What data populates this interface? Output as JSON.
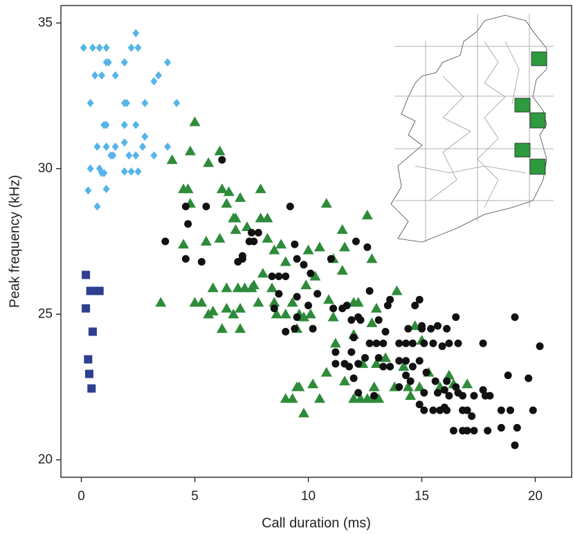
{
  "chart_data": {
    "type": "scatter",
    "x_label": "Call duration (ms)",
    "y_label": "Peak frequency (kHz)",
    "xlim": [
      -0.9,
      21.6
    ],
    "ylim": [
      19.4,
      35.6
    ],
    "xticks": [
      0,
      5,
      10,
      15,
      20
    ],
    "yticks": [
      20,
      25,
      30,
      35
    ],
    "series": [
      {
        "marker": "diamond",
        "color": "#56b4e9",
        "x": [
          0.1,
          0.5,
          0.8,
          1.1,
          2.2,
          2.5,
          2.4,
          1.1,
          1.9,
          1.2,
          3.8,
          0.6,
          0.9,
          1.5,
          3.4,
          3.2,
          0.4,
          1.9,
          2.0,
          2.8,
          4.2,
          1.0,
          1.1,
          1.9,
          2.4,
          2.8,
          1.9,
          2.7,
          0.7,
          1.1,
          1.5,
          3.8,
          1.4,
          1.3,
          2.1,
          2.4,
          3.2,
          0.4,
          0.8,
          0.9,
          1.0,
          1.9,
          2.2,
          2.5,
          0.3,
          1.1,
          0.7
        ],
        "values": [
          34.15,
          34.15,
          34.15,
          34.15,
          34.15,
          34.15,
          34.65,
          33.65,
          33.65,
          33.65,
          33.65,
          33.2,
          33.2,
          33.2,
          33.2,
          33.0,
          32.25,
          32.25,
          32.25,
          32.25,
          32.25,
          31.5,
          31.5,
          31.5,
          31.5,
          31.1,
          30.9,
          30.75,
          30.75,
          30.75,
          30.75,
          30.75,
          30.45,
          30.45,
          30.45,
          30.45,
          30.45,
          30.0,
          30.0,
          29.85,
          29.85,
          29.9,
          29.9,
          29.9,
          29.25,
          29.3,
          28.7
        ]
      },
      {
        "marker": "square",
        "color": "#2e3f8f",
        "x": [
          0.2,
          0.4,
          0.6,
          0.8,
          0.2,
          0.5,
          0.3,
          0.35,
          0.45
        ],
        "values": [
          26.35,
          25.8,
          25.8,
          25.8,
          25.2,
          24.4,
          23.45,
          22.95,
          22.45
        ]
      },
      {
        "marker": "triangle",
        "color": "#2e8b3a",
        "x": [
          3.5,
          4.8,
          5.0,
          6.1,
          4.0,
          4.5,
          4.7,
          4.8,
          5.6,
          6.2,
          6.5,
          6.4,
          7.0,
          6.7,
          6.8,
          7.9,
          6.8,
          7.3,
          7.9,
          8.2,
          4.5,
          5.5,
          6.1,
          8.2,
          8.5,
          8.8,
          9.0,
          8.0,
          7.6,
          5.8,
          6.4,
          6.9,
          7.2,
          7.5,
          8.4,
          8.5,
          5.0,
          5.3,
          5.6,
          5.8,
          6.4,
          6.7,
          7.0,
          7.8,
          8.6,
          9.0,
          9.3,
          9.6,
          6.2,
          7.0,
          9.5,
          9.8,
          10.0,
          10.5,
          10.8,
          11.1,
          11.5,
          11.5,
          11.6,
          12.6,
          12.8,
          10.3,
          9.9,
          12.0,
          12.2,
          13.9,
          10.9,
          10.1,
          11.1,
          12.0,
          12.8,
          11.2,
          12.4,
          13.0,
          11.6,
          10.8,
          10.2,
          13.4,
          14.2,
          15.3,
          16.2,
          9.0,
          9.5,
          9.6,
          9.3,
          10.5,
          9.8,
          12.0,
          12.3,
          12.6,
          12.8,
          13.1,
          12.9,
          13.8,
          14.4,
          14.9,
          14.5,
          15.8,
          16.4,
          17.0,
          15.0,
          13.0,
          14.7
        ],
        "values": [
          25.4,
          30.6,
          31.6,
          30.6,
          30.3,
          29.3,
          29.3,
          28.8,
          30.2,
          29.3,
          29.2,
          28.8,
          29.0,
          28.3,
          28.3,
          29.3,
          27.9,
          28.0,
          28.3,
          28.3,
          27.4,
          27.5,
          27.6,
          27.6,
          27.2,
          27.4,
          26.8,
          26.4,
          26.0,
          25.9,
          25.9,
          25.9,
          25.9,
          25.9,
          25.9,
          25.4,
          25.4,
          25.4,
          25.0,
          25.1,
          25.2,
          25.0,
          25.2,
          25.4,
          25.0,
          25.0,
          25.4,
          25.0,
          24.5,
          24.5,
          24.5,
          24.9,
          27.2,
          27.3,
          28.8,
          26.9,
          26.5,
          27.9,
          27.3,
          28.4,
          26.9,
          26.3,
          26.0,
          25.4,
          25.4,
          25.8,
          25.5,
          25.0,
          24.9,
          24.3,
          24.7,
          24.0,
          23.3,
          23.3,
          22.7,
          23.0,
          22.6,
          23.5,
          23.2,
          23.0,
          22.9,
          22.1,
          22.5,
          22.5,
          22.1,
          22.1,
          21.6,
          22.1,
          22.1,
          22.1,
          22.1,
          22.1,
          22.5,
          22.5,
          22.5,
          22.5,
          22.2,
          22.5,
          22.6,
          22.6,
          24.1,
          25.2,
          24.6
        ]
      },
      {
        "marker": "circle",
        "color": "#111111",
        "x": [
          3.7,
          4.6,
          4.7,
          5.5,
          6.2,
          5.3,
          4.6,
          7.5,
          7.8,
          7.4,
          7.1,
          7.6,
          6.9,
          7.1,
          8.4,
          8.7,
          9.4,
          9.5,
          9.8,
          10.1,
          9.2,
          9.0,
          11.0,
          12.1,
          10.4,
          10.0,
          9.5,
          8.7,
          8.5,
          9.5,
          9.4,
          10.2,
          9.0,
          11.1,
          11.5,
          11.7,
          12.7,
          11.9,
          12.0,
          13.6,
          13.5,
          12.2,
          12.3,
          13.1,
          13.4,
          14.7,
          14.9,
          15.0,
          15.4,
          15.0,
          15.7,
          16.5,
          16.1,
          14.4,
          12.7,
          13.0,
          13.3,
          12.5,
          13.1,
          14.0,
          14.3,
          14.6,
          15.1,
          15.5,
          15.9,
          16.2,
          16.6,
          17.7,
          11.2,
          11.9,
          11.2,
          11.6,
          11.8,
          12.2,
          12.0,
          13.3,
          13.6,
          14.0,
          14.3,
          14.6,
          14.9,
          15.2,
          14.5,
          14.0,
          14.3,
          15.6,
          16.1,
          16.5,
          16.0,
          16.6,
          16.2,
          16.8,
          17.3,
          17.8,
          18.0,
          17.7,
          15.7,
          15.1,
          14.9,
          15.5,
          15.1,
          15.8,
          16.1,
          16.8,
          17.0,
          17.2,
          16.0,
          12.2,
          12.9,
          16.4,
          16.8,
          17.0,
          17.3,
          17.9,
          18.5,
          18.9,
          18.5,
          18.8,
          19.7,
          19.1,
          20.2,
          19.2,
          19.1,
          19.9,
          12.6
        ],
        "values": [
          27.5,
          28.7,
          28.1,
          28.7,
          30.3,
          26.8,
          26.9,
          27.8,
          27.8,
          27.5,
          27.0,
          27.5,
          26.8,
          26.9,
          26.3,
          26.3,
          27.4,
          26.9,
          26.7,
          26.4,
          28.7,
          26.3,
          26.9,
          27.5,
          25.7,
          25.3,
          25.6,
          25.7,
          25.2,
          24.9,
          24.5,
          24.5,
          24.4,
          25.2,
          25.2,
          25.3,
          25.8,
          24.8,
          24.2,
          25.5,
          25.3,
          24.9,
          24.8,
          24.8,
          24.4,
          25.3,
          25.5,
          24.6,
          24.5,
          24.5,
          24.6,
          24.9,
          24.5,
          24.5,
          24.0,
          24.0,
          24.0,
          23.5,
          23.5,
          24.0,
          24.0,
          24.0,
          24.0,
          24.0,
          23.9,
          24.0,
          24.0,
          24.0,
          23.7,
          23.7,
          23.3,
          23.3,
          23.2,
          23.3,
          22.8,
          23.2,
          23.2,
          23.4,
          23.4,
          23.2,
          23.4,
          23.0,
          22.7,
          22.5,
          22.9,
          22.7,
          22.7,
          22.5,
          22.4,
          22.3,
          22.2,
          22.2,
          22.2,
          22.2,
          22.2,
          22.4,
          22.3,
          22.3,
          21.9,
          21.7,
          21.7,
          21.7,
          21.7,
          21.7,
          21.7,
          21.5,
          21.8,
          22.3,
          22.2,
          21.0,
          21.0,
          21.0,
          21.0,
          21.0,
          21.7,
          21.7,
          21.1,
          22.9,
          22.8,
          24.9,
          23.9,
          21.1,
          20.5,
          21.7,
          27.3
        ]
      }
    ]
  }
}
